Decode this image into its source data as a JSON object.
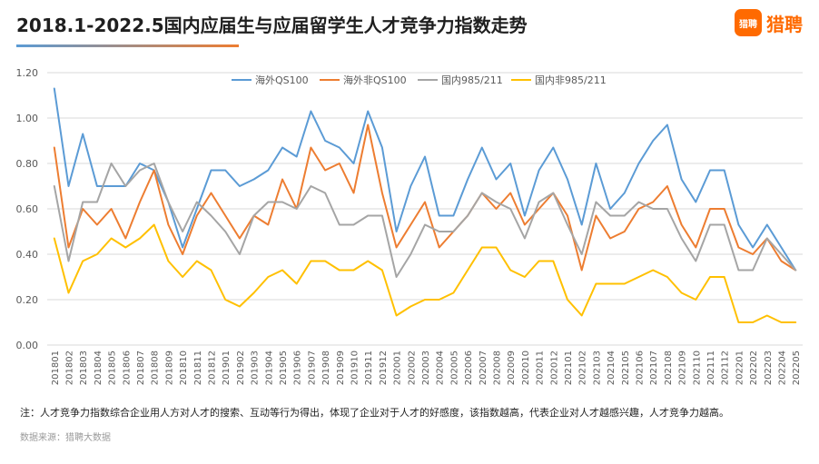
{
  "header": {
    "title": "2018.1-2022.5国内应届生与应届留学生人才竞争力指数走势",
    "logo_badge": "猎聘",
    "logo_text": "猎聘"
  },
  "colors": {
    "series": [
      "#5b9bd5",
      "#ed7d31",
      "#a5a5a5",
      "#ffc000"
    ],
    "underline_start": "#5b9bd5",
    "underline_end": "#ed7d31",
    "brand": "#ff6a00"
  },
  "footer": {
    "note": "注：人才竞争力指数综合企业用人方对人才的搜索、互动等行为得出，体现了企业对于人才的好感度，该指数越高，代表企业对人才越感兴趣，人才竞争力越高。",
    "source": "数据来源：猎聘大数据"
  },
  "chart_data": {
    "type": "line",
    "title": "2018.1-2022.5国内应届生与应届留学生人才竞争力指数走势",
    "xlabel": "",
    "ylabel": "",
    "ylim": [
      0,
      1.2
    ],
    "yticks": [
      "0.00",
      "0.20",
      "0.40",
      "0.60",
      "0.80",
      "1.00",
      "1.20"
    ],
    "grid": true,
    "legend_position": "top",
    "categories": [
      "201801",
      "201802",
      "201803",
      "201804",
      "201805",
      "201806",
      "201807",
      "201808",
      "201809",
      "201810",
      "201811",
      "201812",
      "201901",
      "201902",
      "201903",
      "201904",
      "201905",
      "201906",
      "201907",
      "201908",
      "201909",
      "201910",
      "201911",
      "201912",
      "202001",
      "202002",
      "202003",
      "202004",
      "202005",
      "202006",
      "202007",
      "202008",
      "202009",
      "202010",
      "202011",
      "202012",
      "202101",
      "202102",
      "202103",
      "202104",
      "202105",
      "202106",
      "202107",
      "202108",
      "202109",
      "202110",
      "202111",
      "202112",
      "202201",
      "202202",
      "202203",
      "202204",
      "202205"
    ],
    "series": [
      {
        "name": "海外QS100",
        "values": [
          1.13,
          0.7,
          0.93,
          0.7,
          0.7,
          0.7,
          0.8,
          0.77,
          0.63,
          0.43,
          0.6,
          0.77,
          0.77,
          0.7,
          0.73,
          0.77,
          0.87,
          0.83,
          1.03,
          0.9,
          0.87,
          0.8,
          1.03,
          0.87,
          0.5,
          0.7,
          0.83,
          0.57,
          0.57,
          0.73,
          0.87,
          0.73,
          0.8,
          0.57,
          0.77,
          0.87,
          0.73,
          0.53,
          0.8,
          0.6,
          0.67,
          0.8,
          0.9,
          0.97,
          0.73,
          0.63,
          0.77,
          0.77,
          0.53,
          0.43,
          0.53,
          0.43,
          0.33
        ]
      },
      {
        "name": "海外非QS100",
        "values": [
          0.87,
          0.43,
          0.6,
          0.53,
          0.6,
          0.47,
          0.63,
          0.77,
          0.53,
          0.4,
          0.57,
          0.67,
          0.57,
          0.47,
          0.57,
          0.53,
          0.73,
          0.6,
          0.87,
          0.77,
          0.8,
          0.67,
          0.97,
          0.67,
          0.43,
          0.53,
          0.63,
          0.43,
          0.5,
          0.57,
          0.67,
          0.6,
          0.67,
          0.53,
          0.6,
          0.67,
          0.57,
          0.33,
          0.57,
          0.47,
          0.5,
          0.6,
          0.63,
          0.7,
          0.53,
          0.43,
          0.6,
          0.6,
          0.43,
          0.4,
          0.47,
          0.37,
          0.33
        ]
      },
      {
        "name": "国内985/211",
        "values": [
          0.7,
          0.37,
          0.63,
          0.63,
          0.8,
          0.7,
          0.77,
          0.8,
          0.63,
          0.5,
          0.63,
          0.57,
          0.5,
          0.4,
          0.57,
          0.63,
          0.63,
          0.6,
          0.7,
          0.67,
          0.53,
          0.53,
          0.57,
          0.57,
          0.3,
          0.4,
          0.53,
          0.5,
          0.5,
          0.57,
          0.67,
          0.63,
          0.6,
          0.47,
          0.63,
          0.67,
          0.53,
          0.4,
          0.63,
          0.57,
          0.57,
          0.63,
          0.6,
          0.6,
          0.47,
          0.37,
          0.53,
          0.53,
          0.33,
          0.33,
          0.47,
          0.4,
          0.33
        ]
      },
      {
        "name": "国内非985/211",
        "values": [
          0.47,
          0.23,
          0.37,
          0.4,
          0.47,
          0.43,
          0.47,
          0.53,
          0.37,
          0.3,
          0.37,
          0.33,
          0.2,
          0.17,
          0.23,
          0.3,
          0.33,
          0.27,
          0.37,
          0.37,
          0.33,
          0.33,
          0.37,
          0.33,
          0.13,
          0.17,
          0.2,
          0.2,
          0.23,
          0.33,
          0.43,
          0.43,
          0.33,
          0.3,
          0.37,
          0.37,
          0.2,
          0.13,
          0.27,
          0.27,
          0.27,
          0.3,
          0.33,
          0.3,
          0.23,
          0.2,
          0.3,
          0.3,
          0.1,
          0.1,
          0.13,
          0.1,
          0.1
        ]
      }
    ]
  }
}
